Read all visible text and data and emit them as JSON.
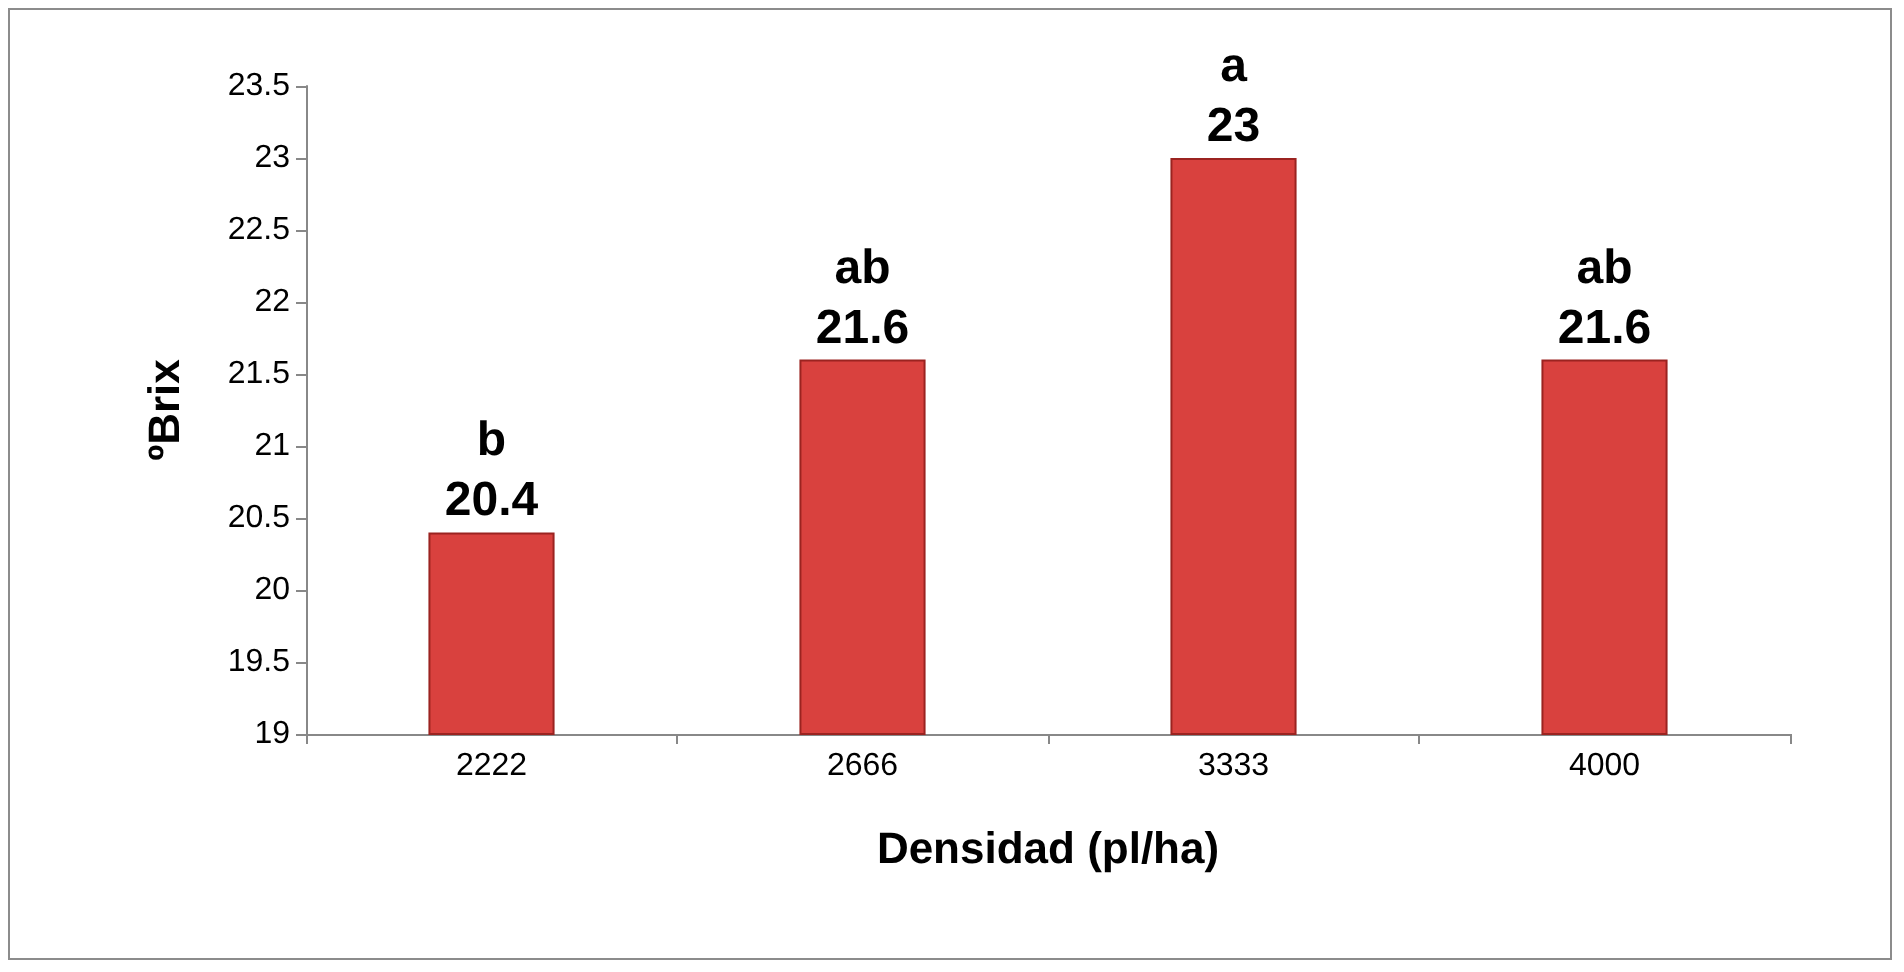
{
  "chart_data": {
    "type": "bar",
    "xlabel": "Densidad (pl/ha)",
    "ylabel": "ºBrix",
    "categories": [
      "2222",
      "2666",
      "3333",
      "4000"
    ],
    "values": [
      20.4,
      21.6,
      23,
      21.6
    ],
    "color": "#d9413e",
    "ylim": [
      19,
      23.5
    ],
    "yticks": [
      19,
      19.5,
      20,
      20.5,
      21,
      21.5,
      22,
      22.5,
      23,
      23.5
    ],
    "grid": false,
    "data_labels": true,
    "annotations": [
      {
        "text": "b",
        "x": "2222",
        "y": 20.4
      },
      {
        "text": "ab",
        "x": "2666",
        "y": 21.6
      },
      {
        "text": "a",
        "x": "3333",
        "y": 23
      },
      {
        "text": "ab",
        "x": "4000",
        "y": 21.6
      }
    ]
  }
}
